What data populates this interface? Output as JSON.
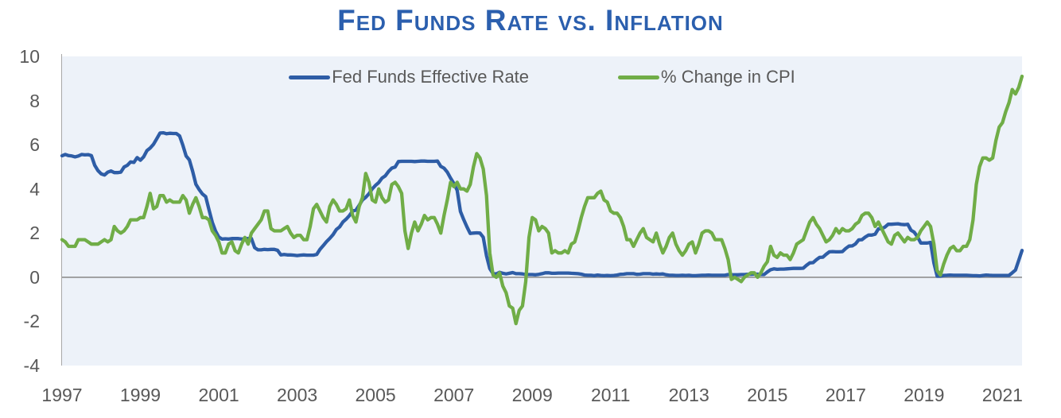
{
  "title": "Fed Funds Rate vs. Inflation",
  "colors": {
    "title": "#2b5fae",
    "tick_text": "#595959",
    "legend_text": "#595959",
    "axis_line": "#a8a8a8",
    "zero_line": "#8f8f8f",
    "plot_background": "#edf2f9",
    "page_background": "#ffffff"
  },
  "legend": {
    "position": "top-center",
    "items": [
      {
        "label": "Fed Funds Effective Rate",
        "color": "#2e5da6"
      },
      {
        "label": "% Change in CPI",
        "color": "#70ad47"
      }
    ]
  },
  "chart_data": {
    "type": "line",
    "title": "Fed Funds Rate vs. Inflation",
    "x_unit": "month",
    "x_start": "1997-12",
    "x_end": "2022-06",
    "x_tick_labels": [
      "1997",
      "1999",
      "2001",
      "2003",
      "2005",
      "2007",
      "2009",
      "2011",
      "2013",
      "2015",
      "2017",
      "2019",
      "2021"
    ],
    "x_tick_interval_months": 24,
    "ylim": [
      -4,
      10
    ],
    "y_ticks": [
      10,
      8,
      6,
      4,
      2,
      0,
      -2,
      -4
    ],
    "grid": false,
    "zero_baseline": true,
    "series": [
      {
        "name": "Fed Funds Effective Rate",
        "color": "#2e5da6",
        "values": [
          5.5,
          5.56,
          5.51,
          5.49,
          5.45,
          5.49,
          5.56,
          5.54,
          5.55,
          5.51,
          5.07,
          4.83,
          4.68,
          4.63,
          4.76,
          4.81,
          4.74,
          4.74,
          4.76,
          4.99,
          5.07,
          5.22,
          5.2,
          5.42,
          5.3,
          5.45,
          5.73,
          5.85,
          6.02,
          6.27,
          6.53,
          6.54,
          6.5,
          6.52,
          6.51,
          6.51,
          6.4,
          5.98,
          5.49,
          5.31,
          4.8,
          4.21,
          3.97,
          3.77,
          3.65,
          3.07,
          2.49,
          2.09,
          1.82,
          1.73,
          1.74,
          1.73,
          1.75,
          1.75,
          1.75,
          1.73,
          1.74,
          1.75,
          1.75,
          1.34,
          1.24,
          1.24,
          1.26,
          1.25,
          1.26,
          1.26,
          1.22,
          1.01,
          1.03,
          1.01,
          1.01,
          1.0,
          0.98,
          1.0,
          1.01,
          1.0,
          1.0,
          1.0,
          1.03,
          1.26,
          1.43,
          1.61,
          1.76,
          1.93,
          2.16,
          2.28,
          2.5,
          2.63,
          2.79,
          3.0,
          3.04,
          3.26,
          3.5,
          3.62,
          3.78,
          4.0,
          4.16,
          4.29,
          4.49,
          4.59,
          4.79,
          4.94,
          4.99,
          5.24,
          5.25,
          5.25,
          5.25,
          5.25,
          5.24,
          5.25,
          5.26,
          5.26,
          5.25,
          5.25,
          5.25,
          5.26,
          5.02,
          4.94,
          4.76,
          4.49,
          4.24,
          3.94,
          2.98,
          2.61,
          2.28,
          1.98,
          2.0,
          2.01,
          2.0,
          1.81,
          0.97,
          0.39,
          0.16,
          0.15,
          0.22,
          0.18,
          0.15,
          0.18,
          0.21,
          0.16,
          0.16,
          0.15,
          0.12,
          0.12,
          0.12,
          0.11,
          0.13,
          0.16,
          0.2,
          0.2,
          0.18,
          0.18,
          0.19,
          0.19,
          0.19,
          0.19,
          0.18,
          0.17,
          0.16,
          0.14,
          0.1,
          0.09,
          0.09,
          0.07,
          0.1,
          0.08,
          0.07,
          0.08,
          0.07,
          0.08,
          0.1,
          0.13,
          0.14,
          0.16,
          0.16,
          0.16,
          0.13,
          0.14,
          0.16,
          0.16,
          0.16,
          0.14,
          0.15,
          0.14,
          0.15,
          0.11,
          0.09,
          0.09,
          0.08,
          0.08,
          0.09,
          0.08,
          0.09,
          0.07,
          0.07,
          0.08,
          0.09,
          0.09,
          0.1,
          0.09,
          0.09,
          0.09,
          0.09,
          0.09,
          0.12,
          0.11,
          0.11,
          0.11,
          0.12,
          0.12,
          0.13,
          0.13,
          0.14,
          0.14,
          0.12,
          0.12,
          0.24,
          0.34,
          0.38,
          0.36,
          0.37,
          0.37,
          0.38,
          0.39,
          0.4,
          0.4,
          0.4,
          0.41,
          0.54,
          0.65,
          0.66,
          0.79,
          0.9,
          0.91,
          1.04,
          1.15,
          1.16,
          1.15,
          1.15,
          1.16,
          1.3,
          1.41,
          1.42,
          1.51,
          1.69,
          1.7,
          1.82,
          1.91,
          1.91,
          1.95,
          2.19,
          2.2,
          2.27,
          2.4,
          2.4,
          2.41,
          2.42,
          2.39,
          2.38,
          2.4,
          2.13,
          2.04,
          1.83,
          1.55,
          1.55,
          1.55,
          1.58,
          0.65,
          0.05,
          0.05,
          0.08,
          0.09,
          0.1,
          0.09,
          0.09,
          0.09,
          0.09,
          0.09,
          0.08,
          0.07,
          0.07,
          0.06,
          0.08,
          0.1,
          0.09,
          0.08,
          0.08,
          0.08,
          0.08,
          0.08,
          0.08,
          0.2,
          0.33,
          0.77,
          1.21
        ]
      },
      {
        "name": "% Change in CPI",
        "color": "#70ad47",
        "values": [
          1.7,
          1.6,
          1.4,
          1.4,
          1.4,
          1.7,
          1.7,
          1.7,
          1.6,
          1.5,
          1.5,
          1.5,
          1.6,
          1.7,
          1.6,
          1.7,
          2.3,
          2.1,
          2.0,
          2.1,
          2.3,
          2.6,
          2.6,
          2.6,
          2.7,
          2.7,
          3.2,
          3.8,
          3.1,
          3.2,
          3.7,
          3.7,
          3.4,
          3.5,
          3.4,
          3.4,
          3.4,
          3.7,
          3.5,
          2.9,
          3.3,
          3.6,
          3.2,
          2.7,
          2.7,
          2.6,
          2.1,
          1.9,
          1.6,
          1.1,
          1.1,
          1.5,
          1.6,
          1.2,
          1.1,
          1.5,
          1.8,
          1.5,
          2.0,
          2.2,
          2.4,
          2.6,
          3.0,
          3.0,
          2.2,
          2.1,
          2.1,
          2.1,
          2.2,
          2.3,
          2.0,
          1.8,
          1.9,
          1.9,
          1.7,
          1.7,
          2.3,
          3.1,
          3.3,
          3.0,
          2.7,
          2.5,
          3.2,
          3.5,
          3.3,
          3.0,
          3.0,
          3.1,
          3.5,
          2.8,
          2.5,
          3.2,
          3.6,
          4.7,
          4.3,
          3.5,
          3.4,
          4.0,
          3.6,
          3.4,
          3.5,
          4.2,
          4.3,
          4.1,
          3.8,
          2.1,
          1.3,
          2.0,
          2.5,
          2.1,
          2.4,
          2.8,
          2.6,
          2.7,
          2.7,
          2.4,
          2.0,
          2.8,
          3.5,
          4.3,
          4.1,
          4.3,
          4.0,
          4.0,
          3.9,
          4.2,
          5.0,
          5.6,
          5.4,
          4.9,
          3.7,
          1.1,
          0.1,
          0.0,
          0.2,
          -0.4,
          -0.7,
          -1.3,
          -1.4,
          -2.1,
          -1.5,
          -1.3,
          -0.2,
          1.8,
          2.7,
          2.6,
          2.1,
          2.3,
          2.2,
          2.0,
          1.1,
          1.2,
          1.1,
          1.1,
          1.2,
          1.1,
          1.5,
          1.6,
          2.1,
          2.7,
          3.2,
          3.6,
          3.6,
          3.6,
          3.8,
          3.9,
          3.5,
          3.4,
          3.0,
          2.9,
          2.9,
          2.7,
          2.3,
          1.7,
          1.7,
          1.4,
          1.7,
          2.0,
          2.2,
          1.8,
          1.7,
          1.6,
          2.0,
          1.5,
          1.1,
          1.4,
          1.8,
          2.0,
          1.5,
          1.2,
          1.0,
          1.2,
          1.5,
          1.6,
          1.1,
          1.5,
          2.0,
          2.1,
          2.1,
          2.0,
          1.7,
          1.7,
          1.7,
          1.3,
          0.8,
          -0.1,
          0.0,
          -0.1,
          -0.2,
          0.0,
          0.1,
          0.2,
          0.2,
          0.0,
          0.2,
          0.5,
          0.7,
          1.4,
          1.0,
          0.9,
          1.1,
          1.0,
          1.0,
          0.8,
          1.1,
          1.5,
          1.6,
          1.7,
          2.1,
          2.5,
          2.7,
          2.4,
          2.2,
          1.9,
          1.6,
          1.7,
          1.9,
          2.2,
          2.0,
          2.2,
          2.1,
          2.1,
          2.2,
          2.4,
          2.5,
          2.8,
          2.9,
          2.9,
          2.7,
          2.3,
          2.5,
          2.2,
          1.9,
          1.6,
          1.5,
          1.9,
          2.0,
          1.8,
          1.6,
          1.8,
          1.7,
          1.7,
          1.8,
          2.1,
          2.3,
          2.5,
          2.3,
          1.5,
          0.3,
          0.1,
          0.6,
          1.0,
          1.3,
          1.4,
          1.2,
          1.2,
          1.4,
          1.4,
          1.7,
          2.6,
          4.2,
          5.0,
          5.4,
          5.4,
          5.3,
          5.4,
          6.2,
          6.8,
          7.0,
          7.5,
          7.9,
          8.5,
          8.3,
          8.6,
          9.1
        ]
      }
    ]
  }
}
